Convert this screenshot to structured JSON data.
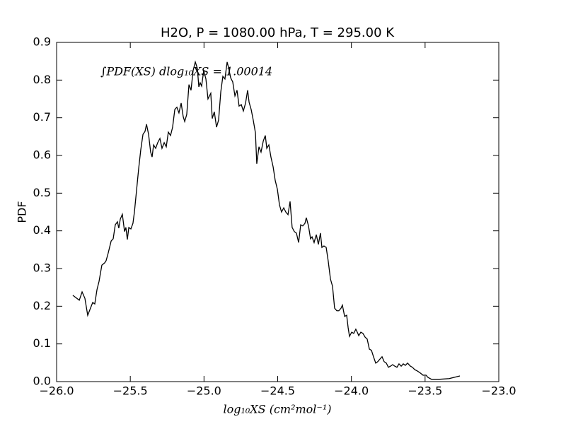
{
  "chart_data": {
    "type": "line",
    "title": "H2O, P = 1080.00 hPa, T = 295.00 K",
    "xlabel": "log₁₀XS (cm²mol⁻¹)",
    "ylabel": "PDF",
    "annotation": "∫PDF(XS) dlog₁₀XS = 1.00014",
    "xlim": [
      -26,
      -23
    ],
    "ylim": [
      0,
      0.9
    ],
    "xticks": [
      {
        "value": -26,
        "label": "−26.0"
      },
      {
        "value": -25.5,
        "label": "−25.5"
      },
      {
        "value": -25,
        "label": "−25.0"
      },
      {
        "value": -24.5,
        "label": "−24.5"
      },
      {
        "value": -24,
        "label": "−24.0"
      },
      {
        "value": -23.5,
        "label": "−23.5"
      },
      {
        "value": -23,
        "label": "−23.0"
      }
    ],
    "yticks": [
      {
        "value": 0,
        "label": "0.0"
      },
      0.1,
      0.2,
      0.3,
      0.4,
      0.5,
      0.6,
      0.7,
      0.8,
      0.9
    ],
    "x": [
      -25.89,
      -25.846,
      -25.827,
      -25.808,
      -25.789,
      -25.77,
      -25.755,
      -25.741,
      -25.726,
      -25.712,
      -25.693,
      -25.674,
      -25.664,
      -25.65,
      -25.63,
      -25.616,
      -25.602,
      -25.587,
      -25.578,
      -25.568,
      -25.554,
      -25.539,
      -25.53,
      -25.52,
      -25.51,
      -25.496,
      -25.482,
      -25.472,
      -25.458,
      -25.443,
      -25.429,
      -25.414,
      -25.4,
      -25.39,
      -25.376,
      -25.362,
      -25.352,
      -25.342,
      -25.328,
      -25.314,
      -25.299,
      -25.285,
      -25.27,
      -25.256,
      -25.242,
      -25.227,
      -25.213,
      -25.198,
      -25.184,
      -25.17,
      -25.155,
      -25.141,
      -25.131,
      -25.117,
      -25.102,
      -25.088,
      -25.074,
      -25.059,
      -25.045,
      -25.035,
      -25.026,
      -25.016,
      -25.002,
      -24.987,
      -24.973,
      -24.954,
      -24.944,
      -24.93,
      -24.915,
      -24.901,
      -24.886,
      -24.872,
      -24.858,
      -24.843,
      -24.834,
      -24.819,
      -24.805,
      -24.79,
      -24.776,
      -24.762,
      -24.747,
      -24.733,
      -24.718,
      -24.704,
      -24.694,
      -24.68,
      -24.666,
      -24.651,
      -24.642,
      -24.627,
      -24.613,
      -24.598,
      -24.584,
      -24.574,
      -24.56,
      -24.546,
      -24.531,
      -24.517,
      -24.502,
      -24.488,
      -24.474,
      -24.459,
      -24.445,
      -24.43,
      -24.416,
      -24.402,
      -24.387,
      -24.373,
      -24.358,
      -24.344,
      -24.33,
      -24.315,
      -24.306,
      -24.291,
      -24.277,
      -24.267,
      -24.253,
      -24.238,
      -24.224,
      -24.21,
      -24.2,
      -24.186,
      -24.171,
      -24.157,
      -24.142,
      -24.128,
      -24.114,
      -24.099,
      -24.085,
      -24.07,
      -24.061,
      -24.046,
      -24.032,
      -24.022,
      -24.013,
      -23.998,
      -23.984,
      -23.97,
      -23.96,
      -23.95,
      -23.936,
      -23.922,
      -23.907,
      -23.893,
      -23.878,
      -23.864,
      -23.85,
      -23.835,
      -23.821,
      -23.806,
      -23.792,
      -23.778,
      -23.763,
      -23.749,
      -23.734,
      -23.72,
      -23.706,
      -23.691,
      -23.677,
      -23.662,
      -23.648,
      -23.634,
      -23.619,
      -23.6,
      -23.586,
      -23.571,
      -23.552,
      -23.533,
      -23.514,
      -23.494,
      -23.48,
      -23.456,
      -23.408,
      -23.336,
      -23.264
    ],
    "series": [
      {
        "name": "PDF",
        "color": "#000000",
        "values": [
          0.229,
          0.216,
          0.238,
          0.221,
          0.176,
          0.195,
          0.21,
          0.206,
          0.244,
          0.266,
          0.309,
          0.315,
          0.321,
          0.341,
          0.373,
          0.379,
          0.416,
          0.424,
          0.407,
          0.431,
          0.444,
          0.398,
          0.409,
          0.377,
          0.409,
          0.405,
          0.42,
          0.45,
          0.506,
          0.566,
          0.615,
          0.656,
          0.664,
          0.683,
          0.656,
          0.609,
          0.596,
          0.628,
          0.619,
          0.634,
          0.645,
          0.619,
          0.634,
          0.623,
          0.662,
          0.653,
          0.675,
          0.722,
          0.728,
          0.713,
          0.739,
          0.703,
          0.69,
          0.709,
          0.788,
          0.773,
          0.825,
          0.848,
          0.831,
          0.782,
          0.793,
          0.784,
          0.825,
          0.803,
          0.75,
          0.765,
          0.698,
          0.716,
          0.675,
          0.694,
          0.769,
          0.81,
          0.803,
          0.848,
          0.834,
          0.806,
          0.795,
          0.758,
          0.773,
          0.731,
          0.735,
          0.718,
          0.739,
          0.773,
          0.741,
          0.722,
          0.694,
          0.66,
          0.578,
          0.623,
          0.609,
          0.638,
          0.653,
          0.619,
          0.628,
          0.596,
          0.57,
          0.534,
          0.51,
          0.469,
          0.45,
          0.461,
          0.45,
          0.443,
          0.478,
          0.409,
          0.398,
          0.394,
          0.369,
          0.416,
          0.413,
          0.42,
          0.435,
          0.413,
          0.379,
          0.384,
          0.369,
          0.39,
          0.364,
          0.394,
          0.356,
          0.36,
          0.356,
          0.319,
          0.272,
          0.253,
          0.195,
          0.188,
          0.188,
          0.195,
          0.203,
          0.173,
          0.176,
          0.143,
          0.12,
          0.131,
          0.128,
          0.139,
          0.131,
          0.122,
          0.131,
          0.128,
          0.118,
          0.113,
          0.086,
          0.083,
          0.066,
          0.049,
          0.053,
          0.06,
          0.066,
          0.053,
          0.049,
          0.038,
          0.041,
          0.045,
          0.041,
          0.038,
          0.047,
          0.041,
          0.047,
          0.043,
          0.049,
          0.041,
          0.038,
          0.032,
          0.028,
          0.023,
          0.017,
          0.017,
          0.011,
          0.006,
          0.006,
          0.008,
          0.015
        ]
      }
    ],
    "grid": false
  }
}
